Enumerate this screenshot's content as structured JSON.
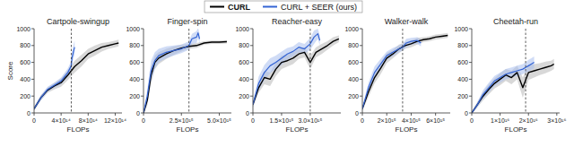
{
  "chart_data": [
    {
      "type": "line",
      "title": "Cartpole-swingup",
      "y_label": "Score",
      "x_label": "FLOPs",
      "legend": "top",
      "xlim": [
        0,
        1300000000000000.0
      ],
      "xticks": [
        0,
        {
          "value": 400000000000000.0,
          "label": "4×10¹⁴"
        },
        {
          "value": 800000000000000.0,
          "label": "8×10¹⁴"
        },
        {
          "value": 1200000000000000.0,
          "label": "12×10¹⁴"
        }
      ],
      "ylim": [
        0,
        1000
      ],
      "yticks": [
        0,
        200,
        400,
        600,
        800,
        1000
      ],
      "vline": 550000000000000.0,
      "series": [
        {
          "name": "CURL",
          "color": "#000000",
          "x": [
            0,
            100000000000000.0,
            200000000000000.0,
            300000000000000.0,
            400000000000000.0,
            500000000000000.0,
            600000000000000.0,
            700000000000000.0,
            800000000000000.0,
            900000000000000.0,
            1000000000000000.0,
            1100000000000000.0,
            1200000000000000.0,
            1250000000000000.0
          ],
          "values": [
            50,
            180,
            270,
            320,
            360,
            450,
            550,
            620,
            700,
            740,
            780,
            800,
            820,
            830
          ],
          "std": [
            20,
            30,
            30,
            40,
            50,
            60,
            70,
            70,
            60,
            60,
            50,
            40,
            40,
            40
          ]
        },
        {
          "name": "CURL + SEER (ours)",
          "color": "#3464d4",
          "x": [
            0,
            100000000000000.0,
            200000000000000.0,
            300000000000000.0,
            400000000000000.0,
            500000000000000.0,
            550000000000000.0,
            560000000000000.0,
            580000000000000.0,
            600000000000000.0
          ],
          "values": [
            50,
            180,
            280,
            330,
            380,
            480,
            560,
            650,
            720,
            780
          ],
          "std": [
            20,
            30,
            30,
            30,
            40,
            50,
            60,
            70,
            80,
            80
          ]
        }
      ]
    },
    {
      "type": "line",
      "title": "Finger-spin",
      "x_label": "FLOPs",
      "xlim": [
        0,
        5800000000000000.0
      ],
      "xticks": [
        0,
        {
          "value": 2500000000000000.0,
          "label": "2.5×10¹⁵"
        },
        {
          "value": 5000000000000000.0,
          "label": "5.0×10¹⁵"
        }
      ],
      "ylim": [
        0,
        1000
      ],
      "yticks": [
        0,
        200,
        400,
        600,
        800,
        1000
      ],
      "vline": 3000000000000000.0,
      "series": [
        {
          "name": "CURL",
          "color": "#000000",
          "x": [
            0,
            250000000000000.0,
            500000000000000.0,
            750000000000000.0,
            1000000000000000.0,
            1500000000000000.0,
            2000000000000000.0,
            2500000000000000.0,
            3000000000000000.0,
            3500000000000000.0,
            4000000000000000.0,
            4500000000000000.0,
            5000000000000000.0,
            5500000000000000.0
          ],
          "values": [
            0,
            150,
            450,
            600,
            650,
            700,
            740,
            770,
            790,
            800,
            830,
            840,
            840,
            845
          ],
          "std": [
            10,
            60,
            100,
            80,
            70,
            60,
            50,
            40,
            30,
            30,
            20,
            20,
            20,
            20
          ]
        },
        {
          "name": "CURL + SEER (ours)",
          "color": "#3464d4",
          "x": [
            0,
            250000000000000.0,
            500000000000000.0,
            750000000000000.0,
            1000000000000000.0,
            1500000000000000.0,
            2000000000000000.0,
            2500000000000000.0,
            3000000000000000.0,
            3200000000000000.0,
            3500000000000000.0,
            3600000000000000.0,
            3700000000000000.0
          ],
          "values": [
            0,
            200,
            500,
            620,
            680,
            720,
            740,
            760,
            800,
            880,
            900,
            950,
            880
          ],
          "std": [
            10,
            80,
            120,
            100,
            80,
            70,
            60,
            50,
            50,
            60,
            70,
            60,
            60
          ]
        }
      ]
    },
    {
      "type": "line",
      "title": "Reacher-easy",
      "x_label": "FLOPs",
      "xlim": [
        0,
        4600000000000000.0
      ],
      "xticks": [
        0,
        {
          "value": 1500000000000000.0,
          "label": "1.5×10¹⁵"
        },
        {
          "value": 3000000000000000.0,
          "label": "3.0×10¹⁵"
        }
      ],
      "ylim": [
        0,
        1000
      ],
      "yticks": [
        0,
        200,
        400,
        600,
        800,
        1000
      ],
      "vline": 3000000000000000.0,
      "series": [
        {
          "name": "CURL",
          "color": "#000000",
          "x": [
            0,
            300000000000000.0,
            600000000000000.0,
            900000000000000.0,
            1200000000000000.0,
            1500000000000000.0,
            1800000000000000.0,
            2100000000000000.0,
            2400000000000000.0,
            2700000000000000.0,
            3000000000000000.0,
            3300000000000000.0,
            3600000000000000.0,
            3900000000000000.0,
            4200000000000000.0,
            4500000000000000.0
          ],
          "values": [
            100,
            300,
            420,
            400,
            520,
            600,
            620,
            650,
            700,
            720,
            600,
            720,
            760,
            800,
            850,
            880
          ],
          "std": [
            30,
            60,
            80,
            80,
            80,
            80,
            70,
            70,
            60,
            60,
            80,
            60,
            60,
            50,
            50,
            40
          ]
        },
        {
          "name": "CURL + SEER (ours)",
          "color": "#3464d4",
          "x": [
            0,
            300000000000000.0,
            600000000000000.0,
            900000000000000.0,
            1200000000000000.0,
            1500000000000000.0,
            1800000000000000.0,
            2100000000000000.0,
            2400000000000000.0,
            2700000000000000.0,
            3000000000000000.0,
            3200000000000000.0,
            3400000000000000.0,
            3500000000000000.0
          ],
          "values": [
            100,
            350,
            480,
            560,
            600,
            650,
            700,
            730,
            780,
            760,
            820,
            900,
            940,
            860
          ],
          "std": [
            30,
            80,
            90,
            90,
            80,
            80,
            70,
            60,
            60,
            60,
            70,
            80,
            60,
            60
          ]
        }
      ]
    },
    {
      "type": "line",
      "title": "Walker-walk",
      "x_label": "FLOPs",
      "xlim": [
        0,
        7200000000000000.0
      ],
      "xticks": [
        0,
        {
          "value": 2000000000000000.0,
          "label": "2×10¹⁵"
        },
        {
          "value": 4000000000000000.0,
          "label": "4×10¹⁵"
        },
        {
          "value": 6000000000000000.0,
          "label": "6×10¹⁵"
        }
      ],
      "ylim": [
        0,
        1000
      ],
      "yticks": [
        0,
        200,
        400,
        600,
        800,
        1000
      ],
      "vline": 3300000000000000.0,
      "series": [
        {
          "name": "CURL",
          "color": "#000000",
          "x": [
            0,
            500000000000000.0,
            1000000000000000.0,
            1500000000000000.0,
            2000000000000000.0,
            2500000000000000.0,
            3000000000000000.0,
            3500000000000000.0,
            4000000000000000.0,
            4500000000000000.0,
            5000000000000000.0,
            5500000000000000.0,
            6000000000000000.0,
            6500000000000000.0,
            7000000000000000.0
          ],
          "values": [
            50,
            250,
            420,
            530,
            650,
            700,
            760,
            800,
            820,
            850,
            870,
            880,
            900,
            910,
            920
          ],
          "std": [
            20,
            60,
            70,
            70,
            60,
            50,
            50,
            40,
            40,
            40,
            30,
            30,
            30,
            30,
            30
          ]
        },
        {
          "name": "CURL + SEER (ours)",
          "color": "#3464d4",
          "x": [
            0,
            500000000000000.0,
            1000000000000000.0,
            1500000000000000.0,
            2000000000000000.0,
            2500000000000000.0,
            3000000000000000.0,
            3300000000000000.0,
            3600000000000000.0,
            4000000000000000.0,
            4500000000000000.0,
            4800000000000000.0
          ],
          "values": [
            50,
            300,
            480,
            580,
            680,
            720,
            760,
            780,
            830,
            850,
            860,
            830
          ],
          "std": [
            20,
            60,
            70,
            60,
            50,
            50,
            40,
            40,
            50,
            40,
            40,
            40
          ]
        }
      ]
    },
    {
      "type": "line",
      "title": "Cheetah-run",
      "x_label": "FLOPs",
      "xlim": [
        0,
        3.1e+16
      ],
      "xticks": [
        0,
        {
          "value": 1e+16,
          "label": "1×10¹⁶"
        },
        {
          "value": 2e+16,
          "label": "2×10¹⁶"
        },
        {
          "value": 3e+16,
          "label": "3×10¹⁶"
        }
      ],
      "ylim": [
        0,
        1000
      ],
      "yticks": [
        0,
        200,
        400,
        600,
        800,
        1000
      ],
      "vline": 1.9e+16,
      "series": [
        {
          "name": "CURL",
          "color": "#000000",
          "x": [
            0,
            2000000000000000.0,
            4000000000000000.0,
            6000000000000000.0,
            8000000000000000.0,
            1e+16,
            1.2e+16,
            1.4e+16,
            1.6e+16,
            1.8e+16,
            2e+16,
            2.2e+16,
            2.4e+16,
            2.6e+16,
            2.8e+16,
            2.9e+16
          ],
          "values": [
            0,
            100,
            200,
            280,
            350,
            400,
            450,
            420,
            480,
            300,
            480,
            500,
            520,
            540,
            560,
            580
          ],
          "std": [
            10,
            30,
            50,
            60,
            60,
            70,
            70,
            80,
            80,
            120,
            90,
            80,
            70,
            70,
            60,
            60
          ]
        },
        {
          "name": "CURL + SEER (ours)",
          "color": "#3464d4",
          "x": [
            0,
            2000000000000000.0,
            4000000000000000.0,
            6000000000000000.0,
            8000000000000000.0,
            1e+16,
            1.2e+16,
            1.4e+16,
            1.6e+16,
            1.8e+16,
            1.9e+16,
            2e+16,
            2.1e+16,
            2.2e+16
          ],
          "values": [
            0,
            100,
            220,
            300,
            380,
            420,
            460,
            480,
            500,
            520,
            540,
            560,
            580,
            600
          ],
          "std": [
            10,
            30,
            50,
            60,
            60,
            60,
            60,
            60,
            60,
            60,
            60,
            70,
            70,
            70
          ]
        }
      ]
    }
  ]
}
